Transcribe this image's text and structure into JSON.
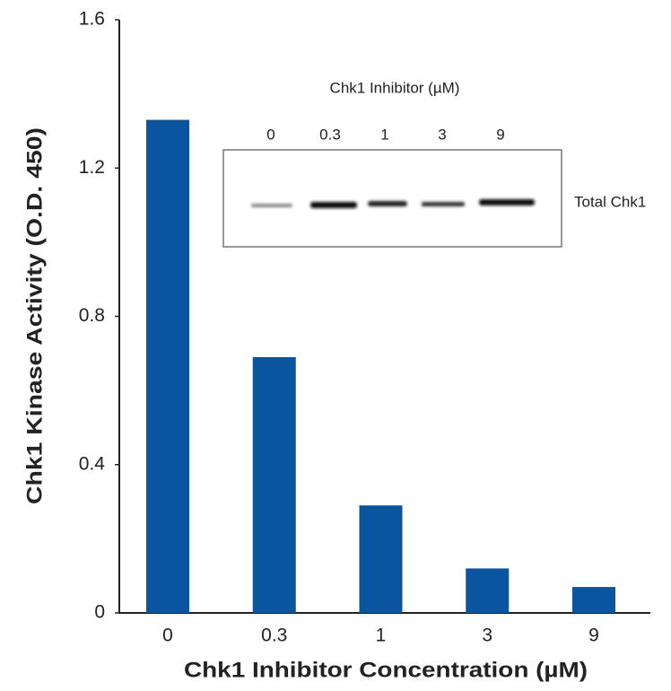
{
  "chart_data": {
    "type": "bar",
    "x_label": "Chk1 Inhibitor Concentration (µM)",
    "y_label": "Chk1 Kinase Activity (O.D. 450)",
    "categories": [
      "0",
      "0.3",
      "1",
      "3",
      "9"
    ],
    "values": [
      1.33,
      0.69,
      0.29,
      0.12,
      0.07
    ],
    "color": "#0a559e",
    "ylim": [
      0,
      1.6
    ],
    "yticks": [
      0,
      0.4,
      0.8,
      1.2,
      1.6
    ],
    "grid": false,
    "inset": {
      "title": "Chk1 Inhibitor (µM)",
      "lanes": [
        "0",
        "0.3",
        "1",
        "3",
        "9"
      ],
      "band_label": "Total Chk1"
    }
  }
}
